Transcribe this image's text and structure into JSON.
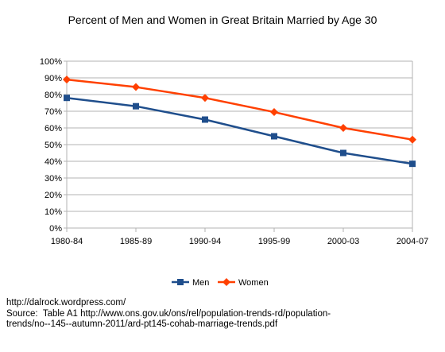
{
  "chart_data": {
    "type": "line",
    "title": "Percent of Men and Women in Great Britain Married by Age 30",
    "xlabel": "",
    "ylabel": "",
    "categories": [
      "1980-84",
      "1985-89",
      "1990-94",
      "1995-99",
      "2000-03",
      "2004-07"
    ],
    "ylim": [
      0,
      100
    ],
    "yticks": [
      "0%",
      "10%",
      "20%",
      "30%",
      "40%",
      "50%",
      "60%",
      "70%",
      "80%",
      "90%",
      "100%"
    ],
    "grid": "horizontal",
    "legend_position": "bottom",
    "series": [
      {
        "name": "Men",
        "color": "#1f4e8c",
        "marker": "square",
        "values": [
          78,
          73,
          65,
          55,
          45,
          38.5
        ]
      },
      {
        "name": "Women",
        "color": "#ff4000",
        "marker": "diamond",
        "values": [
          89,
          84.5,
          78,
          69.5,
          60,
          53
        ]
      }
    ]
  },
  "footer": {
    "line1": "http://dalrock.wordpress.com/",
    "line2": "Source:  Table A1 http://www.ons.gov.uk/ons/rel/population-trends-rd/population-",
    "line3": "trends/no--145--autumn-2011/ard-pt145-cohab-marriage-trends.pdf"
  }
}
